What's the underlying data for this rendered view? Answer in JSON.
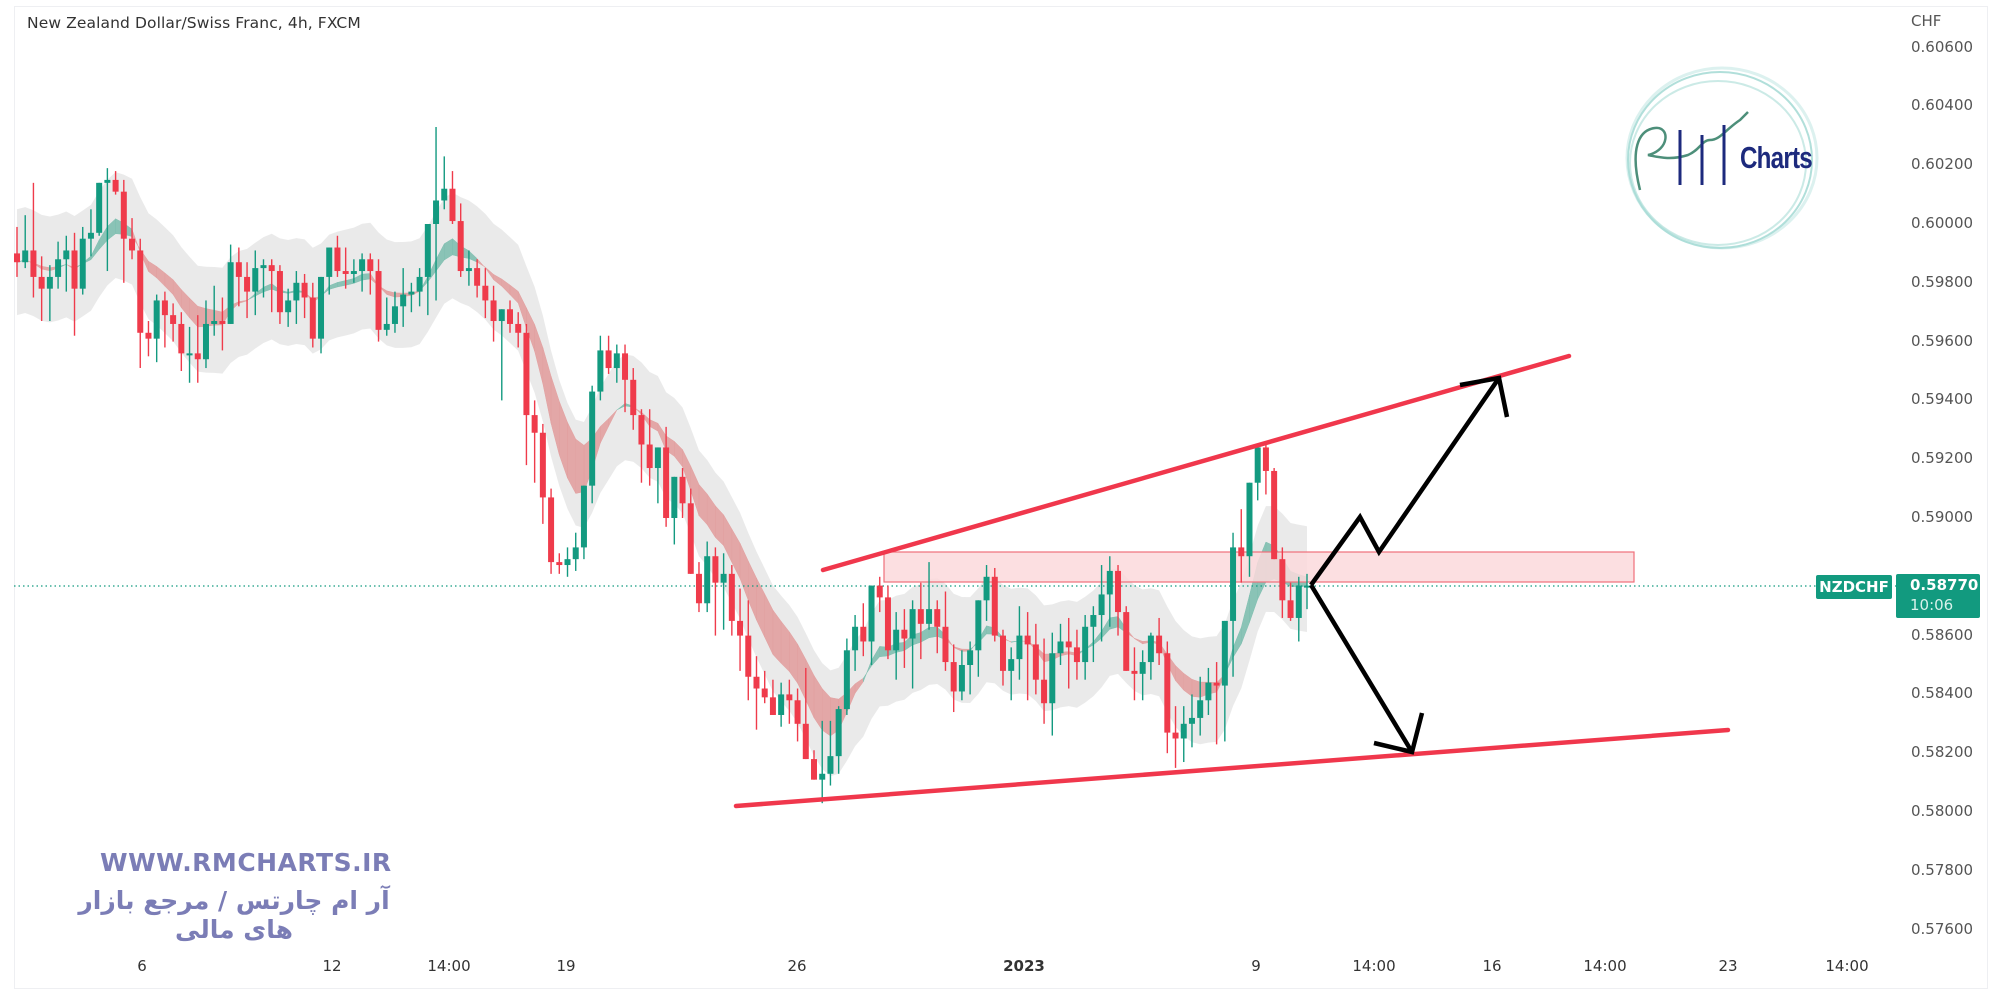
{
  "header": {
    "title": "New Zealand Dollar/Swiss Franc, 4h, FXCM"
  },
  "price_axis": {
    "currency": "CHF",
    "ticks": [
      "0.60600",
      "0.60400",
      "0.60200",
      "0.60000",
      "0.59800",
      "0.59600",
      "0.59400",
      "0.59200",
      "0.59000",
      "0.58600",
      "0.58400",
      "0.58200",
      "0.58000",
      "0.57800",
      "0.57600"
    ]
  },
  "time_axis": {
    "ticks": [
      "6",
      "12",
      "14:00",
      "19",
      "26",
      "2023",
      "9",
      "14:00",
      "16",
      "14:00",
      "23",
      "14:00"
    ]
  },
  "current_price": {
    "symbol": "NZDCHF",
    "price": "0.58770",
    "countdown": "10:06"
  },
  "watermark": {
    "url": "WWW.RMCHARTS.IR",
    "tagline": "آر ام چارتس / مرجع بازار های مالی",
    "logo_text": "Charts"
  },
  "colors": {
    "up": "#139a80",
    "down": "#ef3b4b",
    "trendline": "#f0374c",
    "zone_fill": "#fbd9dc",
    "zone_stroke": "#ef6f7a",
    "arrow": "#000000",
    "ribbon_up": "#7fbfb0",
    "ribbon_down": "#e2a0a0",
    "band": "#e6e6e6",
    "watermark": "#7b7db6",
    "logo_blue": "#1d2a7d",
    "logo_ring": "#a8dcd6"
  },
  "chart_data": {
    "type": "candlestick",
    "title": "New Zealand Dollar/Swiss Franc, 4h, FXCM",
    "symbol": "NZDCHF",
    "timeframe": "4h",
    "xlabel": "",
    "ylabel": "CHF",
    "ylim": [
      0.5752,
      0.6066
    ],
    "grid": false,
    "x_ticks": [
      "6",
      "12",
      "14:00",
      "19",
      "26",
      "2023",
      "9",
      "14:00",
      "16",
      "14:00",
      "23",
      "14:00"
    ],
    "last_price": 0.5877,
    "candles_ohlc": [
      [
        0.599,
        0.5999,
        0.5982,
        0.5987
      ],
      [
        0.5987,
        0.6003,
        0.5985,
        0.5991
      ],
      [
        0.5991,
        0.6014,
        0.5975,
        0.5982
      ],
      [
        0.5982,
        0.5989,
        0.5967,
        0.5978
      ],
      [
        0.5978,
        0.5986,
        0.5967,
        0.5982
      ],
      [
        0.5982,
        0.5994,
        0.5978,
        0.5988
      ],
      [
        0.5988,
        0.5996,
        0.5977,
        0.5991
      ],
      [
        0.5991,
        0.5997,
        0.5962,
        0.5978
      ],
      [
        0.5978,
        0.5999,
        0.5976,
        0.5995
      ],
      [
        0.5995,
        0.6005,
        0.5989,
        0.5997
      ],
      [
        0.5997,
        0.6011,
        0.5996,
        0.6014
      ],
      [
        0.6014,
        0.6019,
        0.5984,
        0.6015
      ],
      [
        0.6015,
        0.6018,
        0.601,
        0.6011
      ],
      [
        0.6011,
        0.6015,
        0.598,
        0.5995
      ],
      [
        0.5995,
        0.6002,
        0.5988,
        0.5991
      ],
      [
        0.5991,
        0.5995,
        0.5951,
        0.5963
      ],
      [
        0.5963,
        0.5967,
        0.5955,
        0.5961
      ],
      [
        0.5961,
        0.5976,
        0.5953,
        0.5974
      ],
      [
        0.5974,
        0.5977,
        0.5958,
        0.5969
      ],
      [
        0.5969,
        0.5973,
        0.596,
        0.5966
      ],
      [
        0.5966,
        0.597,
        0.595,
        0.5956
      ],
      [
        0.5956,
        0.5965,
        0.5946,
        0.5956
      ],
      [
        0.5956,
        0.5969,
        0.5946,
        0.5954
      ],
      [
        0.5954,
        0.5974,
        0.5951,
        0.5966
      ],
      [
        0.5966,
        0.5979,
        0.5962,
        0.5967
      ],
      [
        0.5967,
        0.5975,
        0.5957,
        0.5966
      ],
      [
        0.5966,
        0.5993,
        0.5966,
        0.5987
      ],
      [
        0.5987,
        0.5992,
        0.5972,
        0.5982
      ],
      [
        0.5982,
        0.5987,
        0.5968,
        0.5977
      ],
      [
        0.5977,
        0.5991,
        0.5969,
        0.5985
      ],
      [
        0.5985,
        0.5988,
        0.5975,
        0.5986
      ],
      [
        0.5986,
        0.5988,
        0.597,
        0.5984
      ],
      [
        0.5984,
        0.5986,
        0.5966,
        0.597
      ],
      [
        0.597,
        0.5978,
        0.5965,
        0.5974
      ],
      [
        0.5974,
        0.5984,
        0.5966,
        0.598
      ],
      [
        0.598,
        0.5983,
        0.5968,
        0.5975
      ],
      [
        0.5975,
        0.598,
        0.5958,
        0.5961
      ],
      [
        0.5961,
        0.5982,
        0.5956,
        0.5982
      ],
      [
        0.5982,
        0.5992,
        0.5976,
        0.5992
      ],
      [
        0.5992,
        0.5996,
        0.5982,
        0.5984
      ],
      [
        0.5984,
        0.5992,
        0.5978,
        0.5983
      ],
      [
        0.5983,
        0.5988,
        0.598,
        0.5984
      ],
      [
        0.5984,
        0.599,
        0.5977,
        0.5988
      ],
      [
        0.5988,
        0.599,
        0.5976,
        0.5984
      ],
      [
        0.5984,
        0.5988,
        0.596,
        0.5964
      ],
      [
        0.5964,
        0.5975,
        0.5962,
        0.5966
      ],
      [
        0.5966,
        0.5977,
        0.5963,
        0.5972
      ],
      [
        0.5972,
        0.5985,
        0.5965,
        0.5976
      ],
      [
        0.5976,
        0.598,
        0.597,
        0.5977
      ],
      [
        0.5977,
        0.5985,
        0.5972,
        0.5982
      ],
      [
        0.5982,
        0.5995,
        0.5969,
        0.6
      ],
      [
        0.6,
        0.6033,
        0.5974,
        0.6008
      ],
      [
        0.6008,
        0.6023,
        0.6005,
        0.6012
      ],
      [
        0.6012,
        0.6018,
        0.6,
        0.6001
      ],
      [
        0.6001,
        0.6007,
        0.5982,
        0.5984
      ],
      [
        0.5984,
        0.5991,
        0.5979,
        0.5985
      ],
      [
        0.5985,
        0.5988,
        0.5975,
        0.5979
      ],
      [
        0.5979,
        0.5985,
        0.5968,
        0.5974
      ],
      [
        0.5974,
        0.5979,
        0.596,
        0.5967
      ],
      [
        0.5967,
        0.5971,
        0.594,
        0.5971
      ],
      [
        0.5971,
        0.5974,
        0.5963,
        0.5966
      ],
      [
        0.5966,
        0.597,
        0.5958,
        0.5963
      ],
      [
        0.5963,
        0.5966,
        0.5918,
        0.5935
      ],
      [
        0.5935,
        0.594,
        0.5912,
        0.5929
      ],
      [
        0.5929,
        0.5932,
        0.5898,
        0.5907
      ],
      [
        0.5907,
        0.591,
        0.5881,
        0.5885
      ],
      [
        0.5885,
        0.5888,
        0.5881,
        0.5884
      ],
      [
        0.5884,
        0.589,
        0.588,
        0.5886
      ],
      [
        0.5886,
        0.5895,
        0.5882,
        0.589
      ],
      [
        0.589,
        0.5909,
        0.5886,
        0.5911
      ],
      [
        0.5911,
        0.5945,
        0.5905,
        0.5943
      ],
      [
        0.5943,
        0.5962,
        0.594,
        0.5957
      ],
      [
        0.5957,
        0.5962,
        0.5949,
        0.5951
      ],
      [
        0.5951,
        0.5959,
        0.5946,
        0.5956
      ],
      [
        0.5956,
        0.5959,
        0.5936,
        0.5947
      ],
      [
        0.5947,
        0.5951,
        0.593,
        0.5935
      ],
      [
        0.5935,
        0.5937,
        0.5912,
        0.5925
      ],
      [
        0.5925,
        0.5937,
        0.5911,
        0.5917
      ],
      [
        0.5917,
        0.5924,
        0.5905,
        0.5924
      ],
      [
        0.5924,
        0.5931,
        0.5897,
        0.59
      ],
      [
        0.59,
        0.5913,
        0.5891,
        0.5914
      ],
      [
        0.5914,
        0.5917,
        0.59,
        0.5905
      ],
      [
        0.5905,
        0.591,
        0.5882,
        0.5881
      ],
      [
        0.5881,
        0.5885,
        0.5868,
        0.5871
      ],
      [
        0.5871,
        0.5892,
        0.5868,
        0.5887
      ],
      [
        0.5887,
        0.589,
        0.586,
        0.5878
      ],
      [
        0.5878,
        0.5888,
        0.5862,
        0.5881
      ],
      [
        0.5881,
        0.5884,
        0.586,
        0.5865
      ],
      [
        0.5865,
        0.5876,
        0.5848,
        0.586
      ],
      [
        0.586,
        0.5872,
        0.5838,
        0.5846
      ],
      [
        0.5846,
        0.5853,
        0.5828,
        0.5842
      ],
      [
        0.5842,
        0.5848,
        0.5837,
        0.5839
      ],
      [
        0.5839,
        0.5845,
        0.5833,
        0.5833
      ],
      [
        0.5833,
        0.5844,
        0.5829,
        0.584
      ],
      [
        0.584,
        0.5845,
        0.583,
        0.5838
      ],
      [
        0.5838,
        0.5842,
        0.5824,
        0.583
      ],
      [
        0.583,
        0.5849,
        0.5822,
        0.5818
      ],
      [
        0.5818,
        0.5821,
        0.5811,
        0.5811
      ],
      [
        0.5811,
        0.5831,
        0.5803,
        0.5813
      ],
      [
        0.5813,
        0.5831,
        0.5809,
        0.5819
      ],
      [
        0.5819,
        0.5836,
        0.5813,
        0.5835
      ],
      [
        0.5835,
        0.5859,
        0.5833,
        0.5855
      ],
      [
        0.5855,
        0.5867,
        0.5848,
        0.5863
      ],
      [
        0.5863,
        0.5871,
        0.5853,
        0.5858
      ],
      [
        0.5858,
        0.5872,
        0.585,
        0.5877
      ],
      [
        0.5877,
        0.588,
        0.5868,
        0.5873
      ],
      [
        0.5873,
        0.5877,
        0.5852,
        0.5855
      ],
      [
        0.5855,
        0.5868,
        0.5845,
        0.5862
      ],
      [
        0.5862,
        0.5869,
        0.5849,
        0.5859
      ],
      [
        0.5859,
        0.5872,
        0.5842,
        0.5869
      ],
      [
        0.5869,
        0.5878,
        0.5852,
        0.5864
      ],
      [
        0.5864,
        0.5885,
        0.5862,
        0.5869
      ],
      [
        0.5869,
        0.5872,
        0.5854,
        0.5863
      ],
      [
        0.5863,
        0.5875,
        0.5848,
        0.5851
      ],
      [
        0.5851,
        0.5857,
        0.5834,
        0.5841
      ],
      [
        0.5841,
        0.5855,
        0.5838,
        0.585
      ],
      [
        0.585,
        0.5858,
        0.584,
        0.5855
      ],
      [
        0.5855,
        0.5866,
        0.5846,
        0.5872
      ],
      [
        0.5872,
        0.5884,
        0.5865,
        0.588
      ],
      [
        0.588,
        0.5883,
        0.5858,
        0.586
      ],
      [
        0.586,
        0.5862,
        0.5843,
        0.5848
      ],
      [
        0.5848,
        0.5856,
        0.5838,
        0.5852
      ],
      [
        0.5852,
        0.587,
        0.5845,
        0.586
      ],
      [
        0.586,
        0.5868,
        0.5838,
        0.5857
      ],
      [
        0.5857,
        0.5864,
        0.584,
        0.5845
      ],
      [
        0.5845,
        0.5859,
        0.583,
        0.5837
      ],
      [
        0.5837,
        0.5861,
        0.5826,
        0.5854
      ],
      [
        0.5854,
        0.5864,
        0.585,
        0.5858
      ],
      [
        0.5858,
        0.5866,
        0.5842,
        0.5856
      ],
      [
        0.5856,
        0.5862,
        0.5845,
        0.5851
      ],
      [
        0.5851,
        0.5867,
        0.5845,
        0.5863
      ],
      [
        0.5863,
        0.587,
        0.5851,
        0.5867
      ],
      [
        0.5867,
        0.5884,
        0.5858,
        0.5874
      ],
      [
        0.5874,
        0.5887,
        0.5863,
        0.5882
      ],
      [
        0.5882,
        0.5884,
        0.586,
        0.5868
      ],
      [
        0.5868,
        0.587,
        0.5858,
        0.5848
      ],
      [
        0.5848,
        0.5856,
        0.5838,
        0.5847
      ],
      [
        0.5847,
        0.5855,
        0.5838,
        0.5851
      ],
      [
        0.5851,
        0.5861,
        0.5845,
        0.586
      ],
      [
        0.586,
        0.5866,
        0.585,
        0.5854
      ],
      [
        0.5854,
        0.5858,
        0.582,
        0.5827
      ],
      [
        0.5827,
        0.5836,
        0.5815,
        0.5825
      ],
      [
        0.5825,
        0.5836,
        0.5817,
        0.583
      ],
      [
        0.583,
        0.584,
        0.5822,
        0.5832
      ],
      [
        0.5832,
        0.5846,
        0.5826,
        0.5838
      ],
      [
        0.5838,
        0.5849,
        0.5833,
        0.5844
      ],
      [
        0.5844,
        0.5851,
        0.5823,
        0.5843
      ],
      [
        0.5843,
        0.5862,
        0.5824,
        0.5865
      ],
      [
        0.5865,
        0.5895,
        0.5846,
        0.589
      ],
      [
        0.589,
        0.5903,
        0.5878,
        0.5887
      ],
      [
        0.5887,
        0.5898,
        0.588,
        0.5912
      ],
      [
        0.5912,
        0.5925,
        0.5906,
        0.5924
      ],
      [
        0.5924,
        0.5925,
        0.5908,
        0.5916
      ],
      [
        0.5916,
        0.5917,
        0.589,
        0.5886
      ],
      [
        0.5886,
        0.589,
        0.5866,
        0.5872
      ],
      [
        0.5872,
        0.5878,
        0.5865,
        0.5866
      ],
      [
        0.5866,
        0.588,
        0.5858,
        0.5877
      ],
      [
        0.5877,
        0.5881,
        0.5869,
        0.5877
      ]
    ],
    "annotations": [
      {
        "type": "trendline",
        "label": "upper channel",
        "from_price": 0.5881,
        "to_price": 0.5954
      },
      {
        "type": "trendline",
        "label": "lower channel",
        "from_price": 0.5802,
        "to_price": 0.5828
      },
      {
        "type": "rectangle",
        "label": "resistance zone",
        "top": 0.5888,
        "bottom": 0.5878
      },
      {
        "type": "arrow-path",
        "label": "bullish scenario",
        "direction": "up"
      },
      {
        "type": "arrow-path",
        "label": "bearish scenario",
        "direction": "down"
      }
    ]
  }
}
